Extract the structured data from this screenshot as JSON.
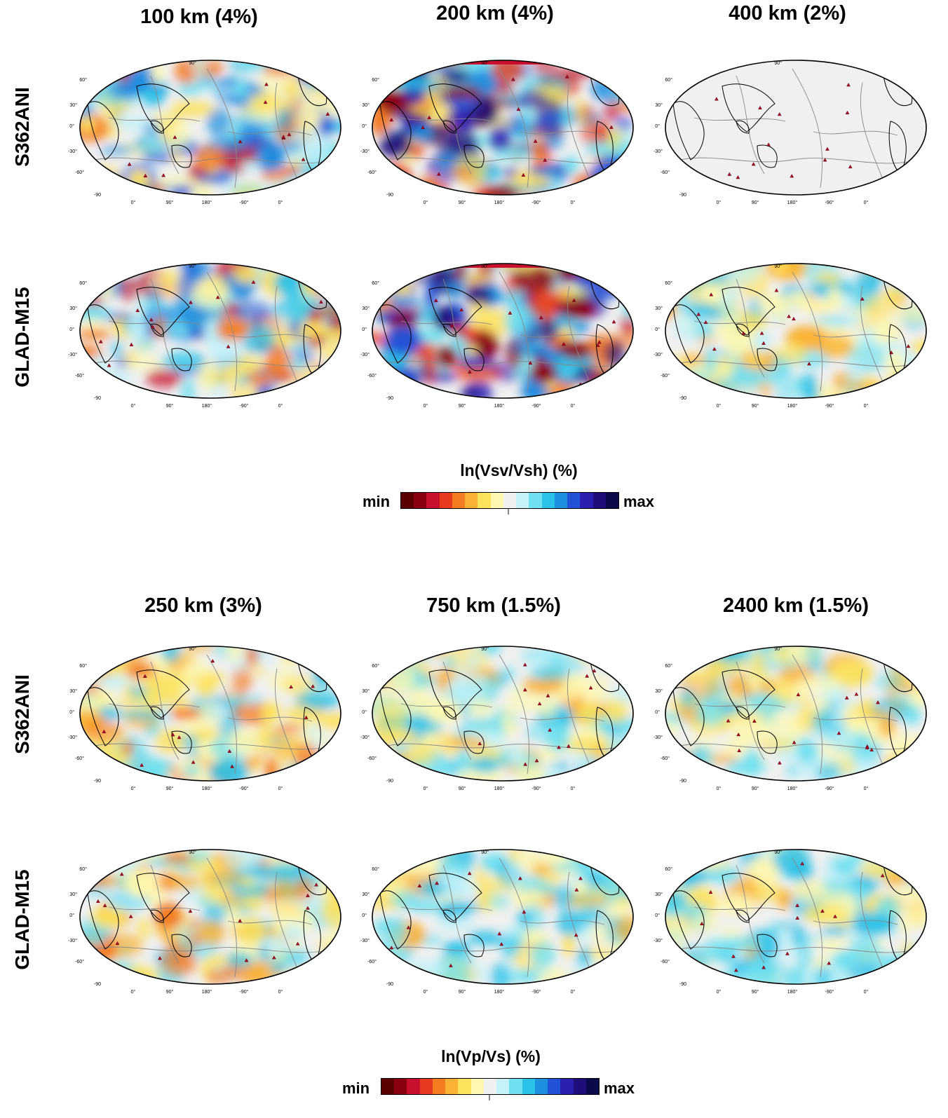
{
  "anisotropy_section": {
    "columns": [
      "100 km (4%)",
      "200 km (4%)",
      "400 km (2%)"
    ],
    "rows": [
      "S362ANI",
      "GLAD-M15"
    ],
    "colorbar": {
      "title": "ln(Vsv/Vsh)  (%)",
      "min": "min",
      "max": "max"
    }
  },
  "ratio_section": {
    "columns": [
      "250 km (3%)",
      "750 km (1.5%)",
      "2400 km (1.5%)"
    ],
    "rows": [
      "S362ANI",
      "GLAD-M15"
    ],
    "colorbar": {
      "title": "ln(Vp/Vs)  (%)",
      "min": "min",
      "max": "max"
    }
  },
  "lat_ticks": [
    "90°",
    "60°",
    "30°",
    "0°",
    "-30°",
    "-60°",
    "-90"
  ],
  "lon_ticks": [
    "0°",
    "90°",
    "180°",
    "-90°",
    "0°"
  ],
  "palette": [
    "#5a0000",
    "#8b0010",
    "#c8102e",
    "#e83a1e",
    "#f47b20",
    "#f9b233",
    "#fde25c",
    "#fdf7b0",
    "#f0f0f0",
    "#c5f1f8",
    "#6fe0f0",
    "#2cc2e8",
    "#1f8fe0",
    "#2252d8",
    "#2a1fb0",
    "#1e0d7a",
    "#0a0a4a"
  ],
  "panels": [
    {
      "style": "mixed",
      "seed": 1
    },
    {
      "style": "strong",
      "seed": 2
    },
    {
      "style": "blank",
      "seed": 3
    },
    {
      "style": "mixed",
      "seed": 4
    },
    {
      "style": "strong",
      "seed": 5
    },
    {
      "style": "light",
      "seed": 6
    },
    {
      "style": "warm",
      "seed": 7
    },
    {
      "style": "light",
      "seed": 8
    },
    {
      "style": "light",
      "seed": 9
    },
    {
      "style": "warm",
      "seed": 10
    },
    {
      "style": "light",
      "seed": 11
    },
    {
      "style": "light",
      "seed": 12
    }
  ]
}
